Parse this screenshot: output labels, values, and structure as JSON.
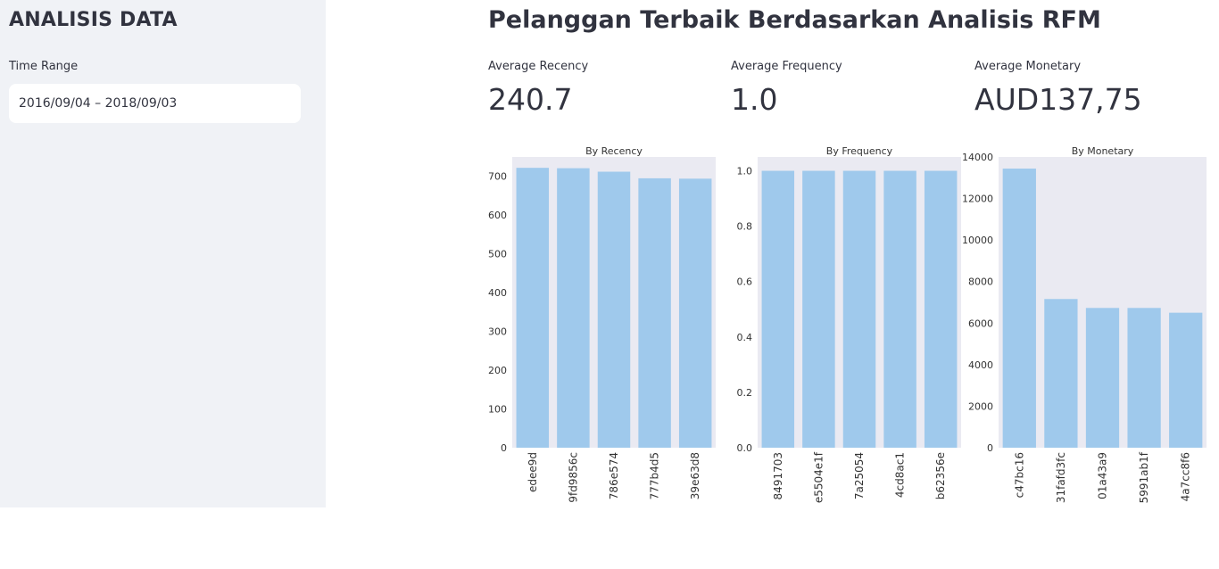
{
  "sidebar": {
    "title": "ANALISIS DATA",
    "time_range_label": "Time Range",
    "time_range_value": "2016/09/04 – 2018/09/03"
  },
  "main": {
    "title": "Pelanggan Terbaik Berdasarkan Analisis RFM",
    "metrics": [
      {
        "label": "Average Recency",
        "value": "240.7"
      },
      {
        "label": "Average Frequency",
        "value": "1.0"
      },
      {
        "label": "Average Monetary",
        "value": "AUD137,75"
      }
    ]
  },
  "colors": {
    "bar": "#9fc9ec",
    "plot_bg": "#eaeaf2",
    "sidebar_bg": "#f0f2f6"
  },
  "chart_data": [
    {
      "type": "bar",
      "title": "By Recency",
      "categories": [
        "edee9d",
        "9fd9856c",
        "786e574",
        "777b4d5",
        "39e63d8"
      ],
      "values": [
        722,
        721,
        712,
        695,
        694
      ],
      "ylim": [
        0,
        750
      ],
      "yticks": [
        0,
        100,
        200,
        300,
        400,
        500,
        600,
        700
      ],
      "ytick_labels": [
        "0",
        "100",
        "200",
        "300",
        "400",
        "500",
        "600",
        "700"
      ],
      "xlabel": "",
      "ylabel": ""
    },
    {
      "type": "bar",
      "title": "By Frequency",
      "categories": [
        "8491703",
        "e5504e1f",
        "7a25054",
        "4cd8ac1",
        "b62356e"
      ],
      "values": [
        1,
        1,
        1,
        1,
        1
      ],
      "ylim": [
        0,
        1.05
      ],
      "yticks": [
        0,
        0.2,
        0.4,
        0.6,
        0.8,
        1.0
      ],
      "ytick_labels": [
        "0.0",
        "0.2",
        "0.4",
        "0.6",
        "0.8",
        "1.0"
      ],
      "xlabel": "",
      "ylabel": ""
    },
    {
      "type": "bar",
      "title": "By Monetary",
      "categories": [
        "c47bc16",
        "31fafd3fc",
        "01a43a9",
        "5991ab1f",
        "4a7cc8f6"
      ],
      "values": [
        13440,
        7160,
        6730,
        6730,
        6500
      ],
      "ylim": [
        0,
        14000
      ],
      "yticks": [
        0,
        2000,
        4000,
        6000,
        8000,
        10000,
        12000,
        14000
      ],
      "ytick_labels": [
        "0",
        "2000",
        "4000",
        "6000",
        "8000",
        "10000",
        "12000",
        "14000"
      ],
      "xlabel": "",
      "ylabel": ""
    }
  ]
}
